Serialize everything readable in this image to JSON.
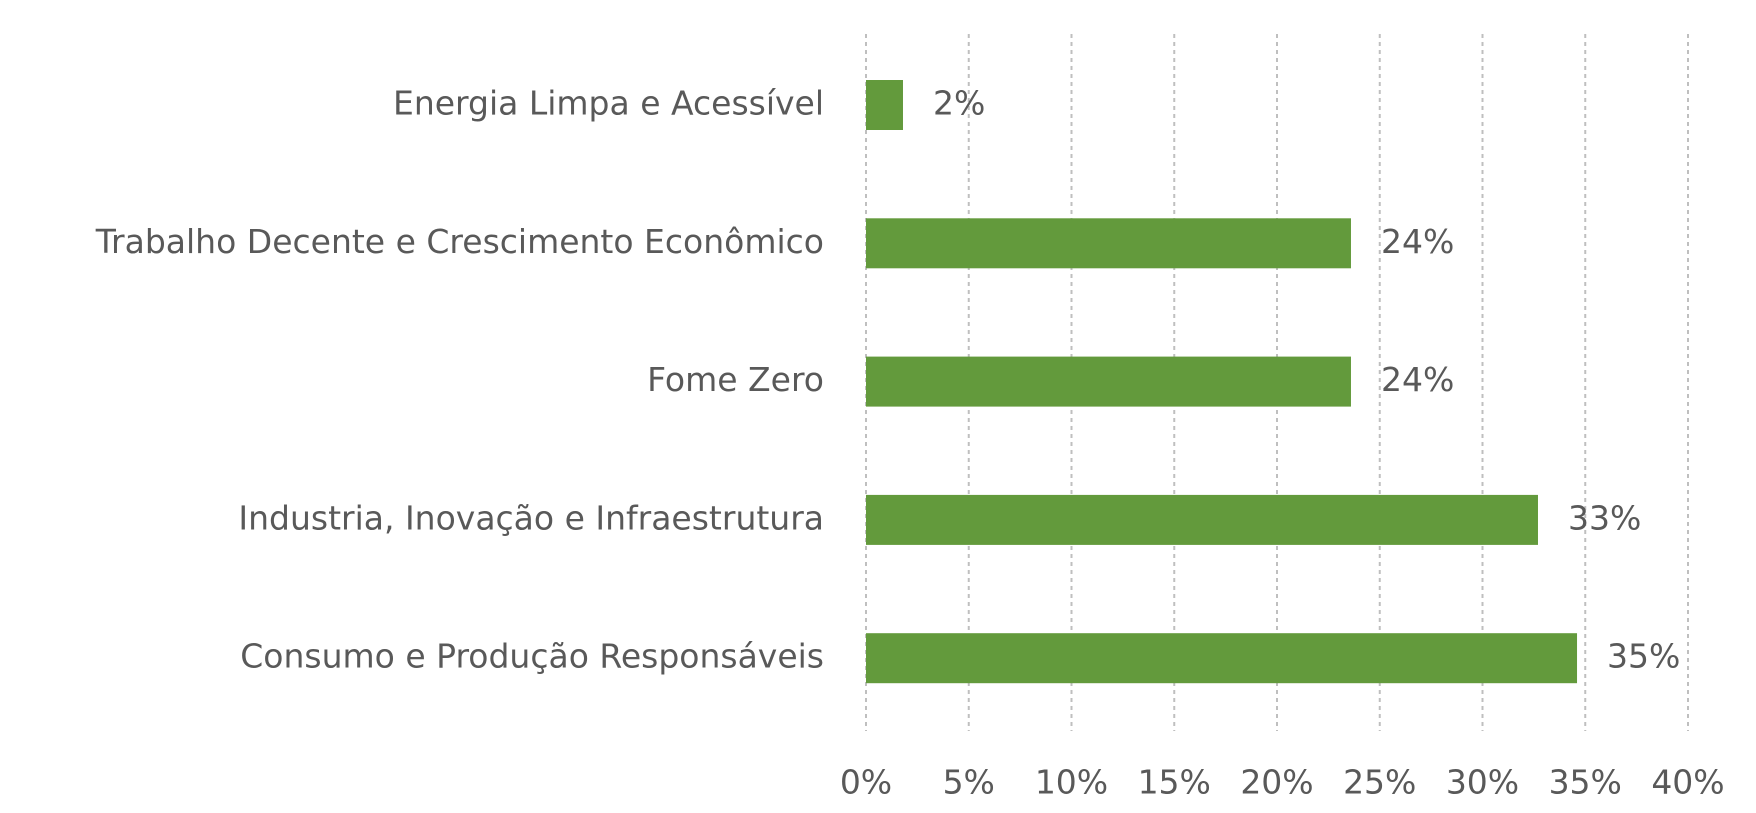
{
  "chart_data": {
    "type": "hbar",
    "categories": [
      "Energia Limpa e Acessível",
      "Trabalho Decente e Crescimento Econômico",
      "Fome Zero",
      "Industria, Inovação e Infraestrutura",
      "Consumo e Produção Responsáveis"
    ],
    "values": [
      1.8,
      23.6,
      23.6,
      32.7,
      34.6
    ],
    "value_labels": [
      "2%",
      "24%",
      "24%",
      "33%",
      "35%"
    ],
    "color": "#639a3c",
    "xlim": [
      0,
      40
    ],
    "xticks": [
      {
        "value": 0,
        "label": "0%"
      },
      {
        "value": 5,
        "label": "5%"
      },
      {
        "value": 10,
        "label": "10%"
      },
      {
        "value": 15,
        "label": "15%"
      },
      {
        "value": 20,
        "label": "20%"
      },
      {
        "value": 25,
        "label": "25%"
      },
      {
        "value": 30,
        "label": "30%"
      },
      {
        "value": 35,
        "label": "35%"
      },
      {
        "value": 40,
        "label": "40%"
      }
    ],
    "grid": true
  }
}
